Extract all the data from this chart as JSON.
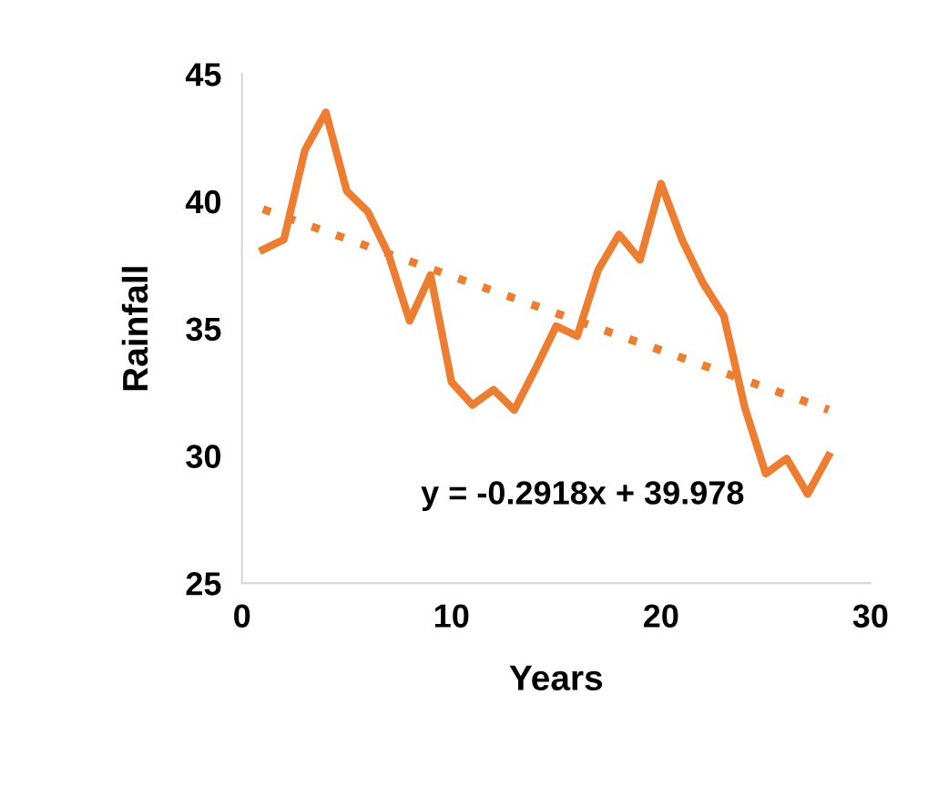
{
  "chart_data": {
    "type": "line",
    "xlabel": "Years",
    "ylabel": "Rainfall",
    "xlim": [
      0,
      30
    ],
    "xticks": [
      0,
      10,
      20,
      30
    ],
    "ylim": [
      25,
      45
    ],
    "yticks": [
      25,
      30,
      35,
      40,
      45
    ],
    "grid": false,
    "legend": false,
    "marker": "none",
    "series": [
      {
        "color": "#ed7d31",
        "line_style": "solid",
        "x": [
          1,
          2,
          3,
          4,
          5,
          6,
          7,
          8,
          9,
          10,
          11,
          12,
          13,
          14,
          15,
          16,
          17,
          18,
          19,
          20,
          21,
          22,
          23,
          24,
          25,
          26,
          27,
          28
        ],
        "values": [
          38.1,
          38.5,
          42.0,
          43.5,
          40.4,
          39.6,
          37.9,
          35.3,
          37.1,
          32.9,
          32.0,
          32.6,
          31.8,
          33.4,
          35.1,
          34.7,
          37.3,
          38.7,
          37.7,
          40.7,
          38.5,
          36.8,
          35.5,
          31.9,
          29.3,
          29.9,
          28.5,
          30.0
        ]
      },
      {
        "type": "line",
        "color": "#ed7d31",
        "line_style": "dotted",
        "x": [
          1,
          28
        ],
        "values": [
          39.69,
          31.81
        ]
      }
    ],
    "annotations": [
      "y = -0.2918x + 39.978"
    ]
  }
}
